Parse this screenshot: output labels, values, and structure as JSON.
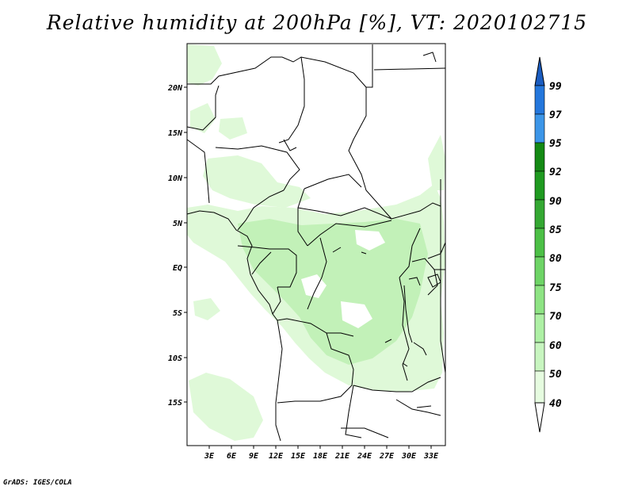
{
  "title": "Relative humidity at 200hPa [%], VT: 2020102715",
  "credit": "GrADS: IGES/COLA",
  "map": {
    "lat_labels": [
      "20N",
      "15N",
      "10N",
      "5N",
      "EQ",
      "5S",
      "10S",
      "15S"
    ],
    "lon_labels": [
      "3E",
      "6E",
      "9E",
      "12E",
      "15E",
      "18E",
      "21E",
      "24E",
      "27E",
      "30E",
      "33E"
    ]
  },
  "colorbar": {
    "levels": [
      "40",
      "50",
      "60",
      "70",
      "75",
      "80",
      "85",
      "90",
      "92",
      "95",
      "97",
      "99"
    ],
    "colors": [
      "#ffffff",
      "#e6fce0",
      "#c8f5c0",
      "#aef0a5",
      "#8ee484",
      "#6ed466",
      "#4cc046",
      "#34a832",
      "#1f9a20",
      "#148a14",
      "#3c96e8",
      "#2477dc",
      "#1a5cc0"
    ]
  },
  "colors": {
    "fill_light": "#dff9d8",
    "fill_medium": "#c2f1b8",
    "border": "#000000"
  }
}
